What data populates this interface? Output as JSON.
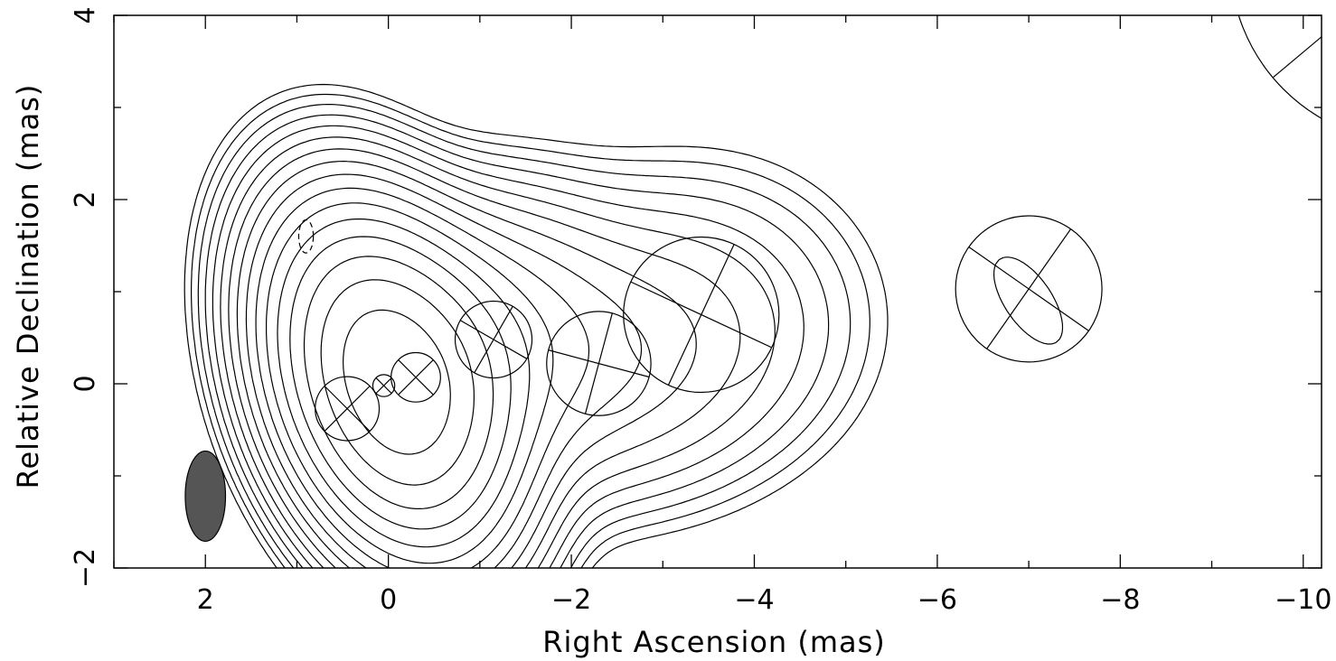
{
  "chart_data": {
    "type": "contour",
    "xlabel": "Right Ascension  (mas)",
    "ylabel": "Relative Declination  (mas)",
    "xlim": [
      3,
      -10.2
    ],
    "ylim": [
      -2,
      4
    ],
    "x_ticks": [
      2,
      0,
      -2,
      -4,
      -6,
      -8,
      -10
    ],
    "x_tick_labels": [
      "2",
      "0",
      "−2",
      "−4",
      "−6",
      "−8",
      "−10"
    ],
    "y_ticks": [
      -2,
      0,
      2,
      4
    ],
    "y_tick_labels": [
      "−2",
      "0",
      "2",
      "4"
    ],
    "x_minor_ticks": [
      3,
      1,
      -1,
      -3,
      -5,
      -7,
      -9
    ],
    "y_minor_ticks": [
      -1,
      1,
      3
    ],
    "beam": {
      "x": 2.0,
      "y": -1.22,
      "major": 0.98,
      "minor": 0.44,
      "pa_deg": 0
    },
    "gaussian_components": [
      {
        "x": 0.05,
        "y": -0.02,
        "radius": 0.12,
        "pa_deg": 45
      },
      {
        "x": -0.3,
        "y": 0.07,
        "radius": 0.27,
        "pa_deg": 45
      },
      {
        "x": 0.45,
        "y": -0.27,
        "radius": 0.35,
        "pa_deg": 45
      },
      {
        "x": -1.15,
        "y": 0.48,
        "radius": 0.42,
        "pa_deg": 60
      },
      {
        "x": -2.3,
        "y": 0.22,
        "radius": 0.57,
        "pa_deg": 75
      },
      {
        "x": -3.42,
        "y": 0.75,
        "radius": 0.85,
        "pa_deg": 65
      },
      {
        "x": -7.0,
        "y": 1.03,
        "radius": 0.8,
        "pa_deg": 55
      },
      {
        "x": -11.2,
        "y": 4.6,
        "radius": 2.0,
        "pa_deg": 40
      }
    ],
    "contour_levels_count": 16,
    "grid": false
  }
}
